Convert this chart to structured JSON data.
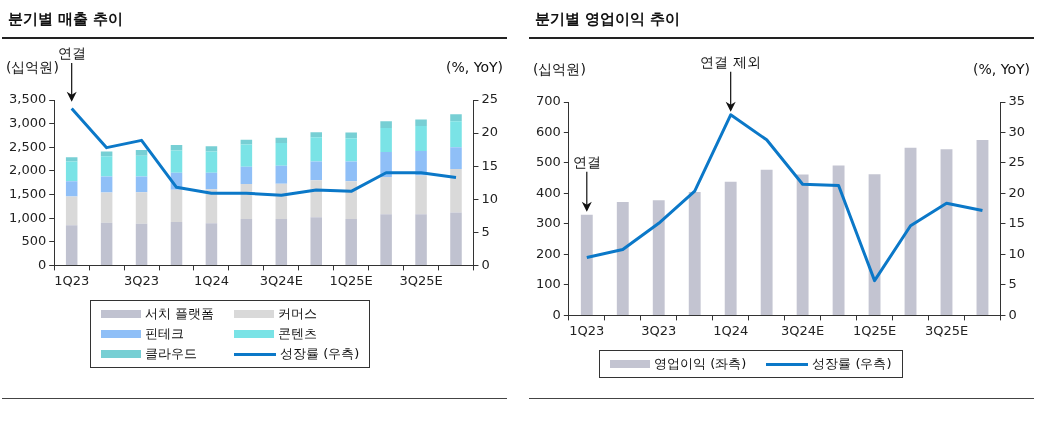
{
  "chart_data": [
    {
      "type": "bar",
      "title": "분기별 매출 추이",
      "ylabel": "(십억원)",
      "y2label": "(%, YoY)",
      "stacked": true,
      "legend": "bottom",
      "grid": false,
      "categories": [
        "1Q23",
        null,
        "3Q23",
        null,
        "1Q24",
        null,
        "3Q24E",
        null,
        "1Q25E",
        null,
        "3Q25E",
        null
      ],
      "ylim": [
        0,
        3500
      ],
      "yticks": [
        0,
        500,
        {
          "value": 1000,
          "label": "1,000"
        },
        {
          "value": 1500,
          "label": "1,500"
        },
        {
          "value": 2000,
          "label": "2,000"
        },
        {
          "value": 2500,
          "label": "2,500"
        },
        {
          "value": 3000,
          "label": "3,000"
        },
        {
          "value": 3500,
          "label": "3,500"
        }
      ],
      "y2lim": [
        0,
        25
      ],
      "y2ticks": [
        0,
        5,
        10,
        15,
        20,
        25
      ],
      "series": [
        {
          "name": "서치 플랫폼",
          "color": "#c0c2d0",
          "values": [
            850,
            900,
            880,
            920,
            890,
            980,
            980,
            1020,
            980,
            1080,
            1080,
            1120
          ]
        },
        {
          "name": "커머스",
          "color": "#d9d9d9",
          "values": [
            610,
            640,
            670,
            680,
            720,
            740,
            750,
            780,
            800,
            790,
            820,
            920
          ]
        },
        {
          "name": "핀테크",
          "color": "#8fbff7",
          "values": [
            320,
            340,
            330,
            360,
            350,
            370,
            380,
            400,
            420,
            530,
            520,
            460
          ]
        },
        {
          "name": "콘텐츠",
          "color": "#7ae3e6",
          "values": [
            420,
            430,
            440,
            470,
            450,
            470,
            480,
            510,
            490,
            510,
            530,
            550
          ]
        },
        {
          "name": "클라우드",
          "color": "#77cfd4",
          "values": [
            90,
            100,
            120,
            120,
            110,
            100,
            110,
            110,
            120,
            140,
            140,
            150
          ]
        },
        {
          "name": "성장률 (우측)",
          "type": "line",
          "axis": "y2",
          "color": "#0b78c8",
          "values": [
            23.7,
            17.8,
            18.9,
            11.8,
            10.9,
            10.9,
            10.6,
            11.4,
            11.2,
            14.0,
            14.0,
            13.3
          ]
        }
      ],
      "annotations": [
        {
          "text": "연결",
          "x": "1Q23",
          "y": 3400
        }
      ]
    },
    {
      "type": "bar",
      "title": "분기별 영업이익 추이",
      "ylabel": "(십억원)",
      "y2label": "(%, YoY)",
      "legend": "bottom",
      "grid": false,
      "categories": [
        "1Q23",
        null,
        "3Q23",
        null,
        "1Q24",
        null,
        "3Q24E",
        null,
        "1Q25E",
        null,
        "3Q25E",
        null
      ],
      "ylim": [
        0,
        700
      ],
      "yticks": [
        0,
        100,
        200,
        300,
        400,
        500,
        600,
        700
      ],
      "y2lim": [
        0,
        35
      ],
      "y2ticks": [
        0,
        5,
        10,
        15,
        20,
        25,
        30,
        35
      ],
      "series": [
        {
          "name": "영업이익 (좌측)",
          "color": "#c3c4d1",
          "values": [
            330,
            372,
            378,
            405,
            438,
            478,
            462,
            492,
            463,
            550,
            545,
            575
          ]
        },
        {
          "name": "성장률 (우측)",
          "type": "line",
          "axis": "y2",
          "color": "#0b78c8",
          "values": [
            9.5,
            10.8,
            15.1,
            20.4,
            32.9,
            28.8,
            21.5,
            21.3,
            5.7,
            14.7,
            18.4,
            17.2
          ]
        }
      ],
      "annotations": [
        {
          "text": "연결",
          "x": "1Q23",
          "y": 330
        },
        {
          "text": "연결 제외",
          "x": "1Q24",
          "y": 658
        }
      ]
    }
  ]
}
